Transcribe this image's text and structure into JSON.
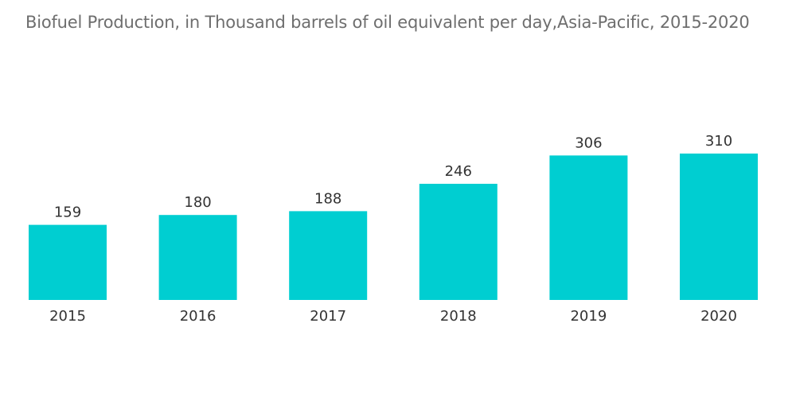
{
  "chart_data": {
    "type": "bar",
    "title": "Biofuel Production, in Thousand barrels of oil equivalent per day,Asia-Pacific, 2015-2020",
    "categories": [
      "2015",
      "2016",
      "2017",
      "2018",
      "2019",
      "2020"
    ],
    "values": [
      159,
      180,
      188,
      246,
      306,
      310
    ],
    "xlabel": "",
    "ylabel": "",
    "ylim": [
      0,
      310
    ],
    "grid": false,
    "legend": "none",
    "bar_color": "#00ced1"
  }
}
